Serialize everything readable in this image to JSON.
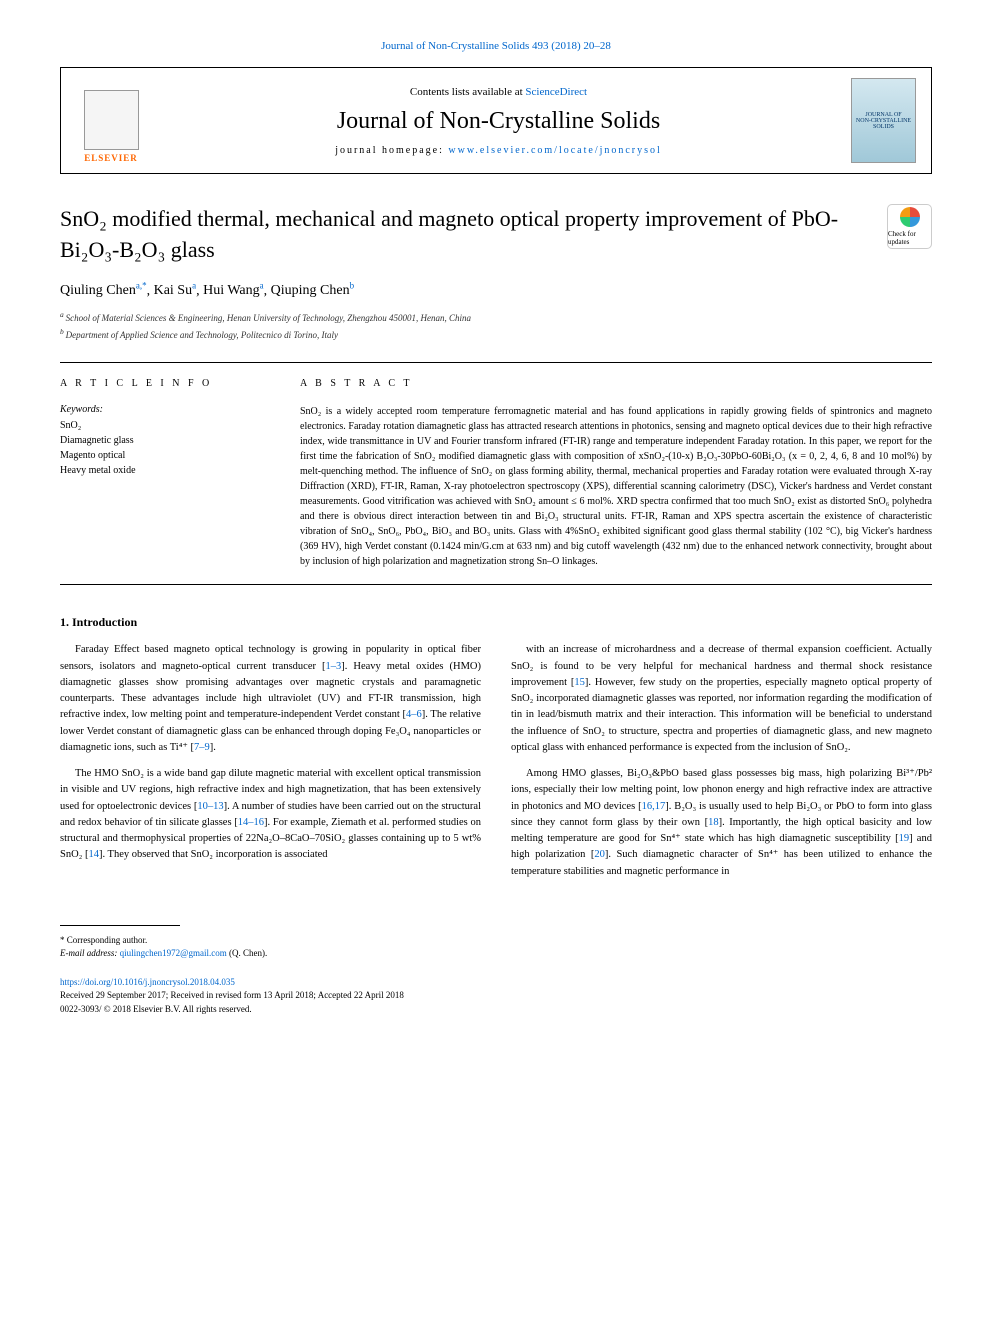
{
  "header": {
    "top_link": "Journal of Non-Crystalline Solids 493 (2018) 20–28",
    "contents_line_prefix": "Contents lists available at ",
    "contents_line_link": "ScienceDirect",
    "journal_name": "Journal of Non-Crystalline Solids",
    "homepage_prefix": "journal homepage: ",
    "homepage_url": "www.elsevier.com/locate/jnoncrysol",
    "elsevier_label": "ELSEVIER",
    "cover_text_1": "JOURNAL OF",
    "cover_text_2": "NON-CRYSTALLINE SOLIDS",
    "check_updates": "Check for updates"
  },
  "title": "SnO₂ modified thermal, mechanical and magneto optical property improvement of PbO-Bi₂O₃-B₂O₃ glass",
  "authors": {
    "list": [
      {
        "name": "Qiuling Chen",
        "sup": "a,*"
      },
      {
        "name": "Kai Su",
        "sup": "a"
      },
      {
        "name": "Hui Wang",
        "sup": "a"
      },
      {
        "name": "Qiuping Chen",
        "sup": "b"
      }
    ]
  },
  "affiliations": [
    {
      "sup": "a",
      "text": "School of Material Sciences & Engineering, Henan University of Technology, Zhengzhou 450001, Henan, China"
    },
    {
      "sup": "b",
      "text": "Department of Applied Science and Technology, Politecnico di Torino, Italy"
    }
  ],
  "article_info_label": "A R T I C L E  I N F O",
  "abstract_label": "A B S T R A C T",
  "keywords_label": "Keywords:",
  "keywords": [
    "SnO₂",
    "Diamagnetic glass",
    "Magento optical",
    "Heavy metal oxide"
  ],
  "abstract": "SnO₂ is a widely accepted room temperature ferromagnetic material and has found applications in rapidly growing fields of spintronics and magneto electronics. Faraday rotation diamagnetic glass has attracted research attentions in photonics, sensing and magneto optical devices due to their high refractive index, wide transmittance in UV and Fourier transform infrared (FT-IR) range and temperature independent Faraday rotation. In this paper, we report for the first time the fabrication of SnO₂ modified diamagnetic glass with composition of xSnO₂-(10-x) B₂O₃-30PbO-60Bi₂O₃ (x = 0, 2, 4, 6, 8 and 10 mol%) by melt-quenching method. The influence of SnO₂ on glass forming ability, thermal, mechanical properties and Faraday rotation were evaluated through X-ray Diffraction (XRD), FT-IR, Raman, X-ray photoelectron spectroscopy (XPS), differential scanning calorimetry (DSC), Vicker's hardness and Verdet constant measurements. Good vitrification was achieved with SnO₂ amount ≤ 6 mol%. XRD spectra confirmed that too much SnO₂ exist as distorted SnO₆ polyhedra and there is obvious direct interaction between tin and Bi₂O₃ structural units. FT-IR, Raman and XPS spectra ascertain the existence of characteristic vibration of SnO₄, SnO₆, PbO₄, BiO₃ and BO₃ units. Glass with 4%SnO₂ exhibited significant good glass thermal stability (102 °C), big Vicker's hardness (369 HV), high Verdet constant (0.1424 min/G.cm at 633 nm) and big cutoff wavelength (432 nm) due to the enhanced network connectivity, brought about by inclusion of high polarization and magnetization strong Sn–O linkages.",
  "section_1_heading": "1. Introduction",
  "body": {
    "col1": [
      {
        "text": "Faraday Effect based magneto optical technology is growing in popularity in optical fiber sensors, isolators and magneto-optical current transducer [",
        "ref": "1–3",
        "text2": "]. Heavy metal oxides (HMO) diamagnetic glasses show promising advantages over magnetic crystals and paramagnetic counterparts. These advantages include high ultraviolet (UV) and FT-IR transmission, high refractive index, low melting point and temperature-independent Verdet constant [",
        "ref2": "4–6",
        "text3": "]. The relative lower Verdet constant of diamagnetic glass can be enhanced through doping Fe₃O₄ nanoparticles or diamagnetic ions, such as Ti⁴⁺ [",
        "ref3": "7–9",
        "text4": "]."
      },
      {
        "text": "The HMO SnO₂ is a wide band gap dilute magnetic material with excellent optical transmission in visible and UV regions, high refractive index and high magnetization, that has been extensively used for optoelectronic devices [",
        "ref": "10–13",
        "text2": "]. A number of studies have been carried out on the structural and redox behavior of tin silicate glasses [",
        "ref2": "14–16",
        "text3": "]. For example, Ziemath et al. performed studies on structural and thermophysical properties of 22Na₂O–8CaO–70SiO₂ glasses containing up to 5 wt% SnO₂ [",
        "ref3": "14",
        "text4": "]. They observed that SnO₂ incorporation is associated"
      }
    ],
    "col2": [
      {
        "text": "with an increase of microhardness and a decrease of thermal expansion coefficient. Actually SnO₂ is found to be very helpful for mechanical hardness and thermal shock resistance improvement [",
        "ref": "15",
        "text2": "]. However, few study on the properties, especially magneto optical property of SnO₂ incorporated diamagnetic glasses was reported, nor information regarding the modification of tin in lead/bismuth matrix and their interaction. This information will be beneficial to understand the influence of SnO₂ to structure, spectra and properties of diamagnetic glass, and new magneto optical glass with enhanced performance is expected from the inclusion of SnO₂."
      },
      {
        "text": "Among HMO glasses, Bi₂O₃&PbO based glass possesses big mass, high polarizing Bi³⁺/Pb² ions, especially their low melting point, low phonon energy and high refractive index are attractive in photonics and MO devices [",
        "ref": "16,17",
        "text2": "]. B₂O₃ is usually used to help Bi₂O₃ or PbO to form into glass since they cannot form glass by their own [",
        "ref2": "18",
        "text3": "]. Importantly, the high optical basicity and low melting temperature are good for Sn⁴⁺ state which has high diamagnetic susceptibility [",
        "ref3": "19",
        "text4": "] and high polarization [",
        "ref4": "20",
        "text5": "]. Such diamagnetic character of Sn⁴⁺ has been utilized to enhance the temperature stabilities and magnetic performance in"
      }
    ]
  },
  "footer": {
    "corresponding": "* Corresponding author.",
    "email_label": "E-mail address: ",
    "email": "qiulingchen1972@gmail.com",
    "email_suffix": " (Q. Chen).",
    "doi": "https://doi.org/10.1016/j.jnoncrysol.2018.04.035",
    "received": "Received 29 September 2017; Received in revised form 13 April 2018; Accepted 22 April 2018",
    "copyright": "0022-3093/ © 2018 Elsevier B.V. All rights reserved."
  }
}
